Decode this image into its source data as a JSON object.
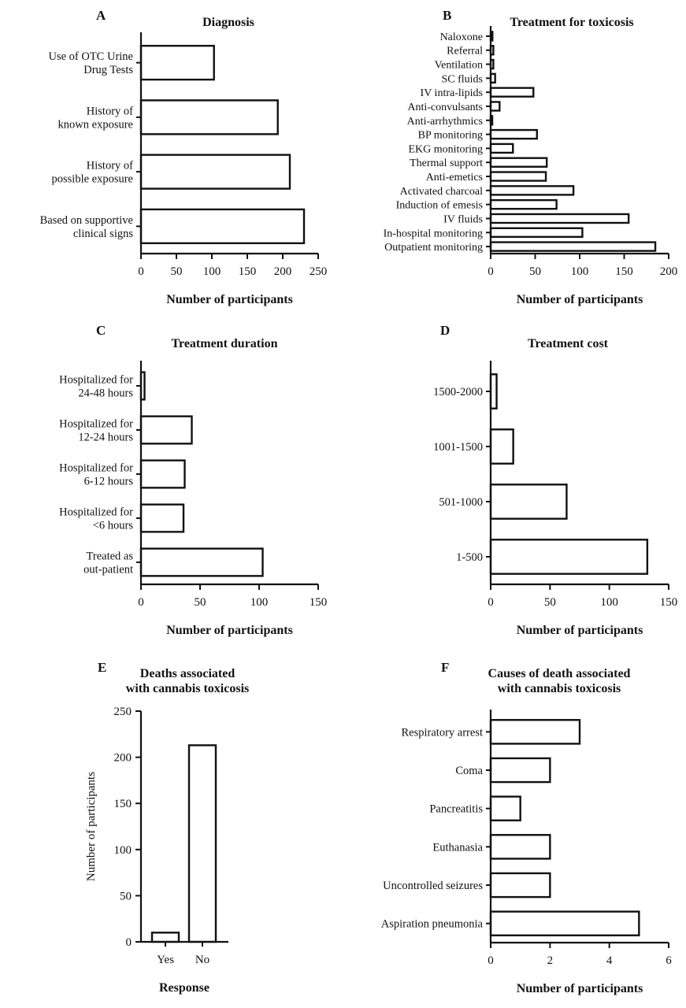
{
  "chart_data": [
    {
      "letter": "A",
      "type": "bar",
      "orientation": "horizontal",
      "title": "Diagnosis",
      "xlabel": "Number of participants",
      "ylabel": "",
      "categories": [
        "Use of OTC Urine\nDrug Tests",
        "History of\nknown exposure",
        "History of\npossible exposure",
        "Based on supportive\nclinical signs"
      ],
      "values": [
        103,
        193,
        210,
        230
      ],
      "xlim": [
        0,
        250
      ],
      "ticks": [
        0,
        50,
        100,
        150,
        200,
        250
      ]
    },
    {
      "letter": "B",
      "type": "bar",
      "orientation": "horizontal",
      "title": "Treatment for toxicosis",
      "xlabel": "Number of participants",
      "ylabel": "",
      "categories": [
        "Naloxone",
        "Referral",
        "Ventilation",
        "SC fluids",
        "IV intra-lipids",
        "Anti-convulsants",
        "Anti-arrhythmics",
        "BP monitoring",
        "EKG monitoring",
        "Thermal support",
        "Anti-emetics",
        "Activated charcoal",
        "Induction of emesis",
        "IV fluids",
        "In-hospital monitoring",
        "Outpatient monitoring"
      ],
      "values": [
        2,
        3,
        3,
        5,
        48,
        10,
        1,
        52,
        25,
        63,
        62,
        93,
        74,
        155,
        103,
        185
      ],
      "xlim": [
        0,
        200
      ],
      "ticks": [
        0,
        50,
        100,
        150,
        200
      ]
    },
    {
      "letter": "C",
      "type": "bar",
      "orientation": "horizontal",
      "title": "Treatment duration",
      "xlabel": "Number of participants",
      "ylabel": "",
      "categories": [
        "Hospitalized for\n24-48 hours",
        "Hospitalized for\n12-24 hours",
        "Hospitalized for\n6-12 hours",
        "Hospitalized for\n<6 hours",
        "Treated as\nout-patient"
      ],
      "values": [
        3,
        43,
        37,
        36,
        103
      ],
      "xlim": [
        0,
        150
      ],
      "ticks": [
        0,
        50,
        100,
        150
      ]
    },
    {
      "letter": "D",
      "type": "bar",
      "orientation": "horizontal",
      "title": "Treatment cost",
      "xlabel": "Number of participants",
      "ylabel": "",
      "categories": [
        "1500-2000",
        "1001-1500",
        "501-1000",
        "1-500"
      ],
      "values": [
        5,
        19,
        64,
        132
      ],
      "xlim": [
        0,
        150
      ],
      "ticks": [
        0,
        50,
        100,
        150
      ]
    },
    {
      "letter": "E",
      "type": "bar",
      "orientation": "vertical",
      "title": "Deaths associated\nwith cannabis toxicosis",
      "xlabel": "Response",
      "ylabel": "Number of participants",
      "categories": [
        "Yes",
        "No"
      ],
      "values": [
        10,
        213
      ],
      "ylim": [
        0,
        250
      ],
      "ticks": [
        0,
        50,
        100,
        150,
        200,
        250
      ]
    },
    {
      "letter": "F",
      "type": "bar",
      "orientation": "horizontal",
      "title": "Causes of death associated\nwith cannabis toxicosis",
      "xlabel": "Number of participants",
      "ylabel": "",
      "categories": [
        "Respiratory arrest",
        "Coma",
        "Pancreatitis",
        "Euthanasia",
        "Uncontrolled seizures",
        "Aspiration pneumonia"
      ],
      "values": [
        3,
        2,
        1,
        2,
        2,
        5
      ],
      "xlim": [
        0,
        6
      ],
      "ticks": [
        0,
        2,
        4,
        6
      ]
    }
  ]
}
